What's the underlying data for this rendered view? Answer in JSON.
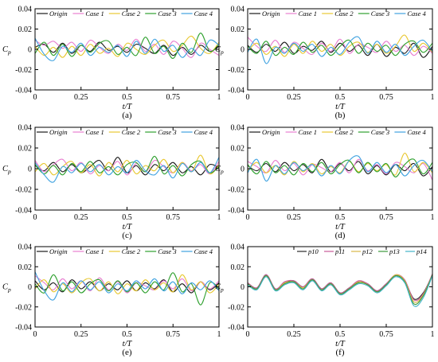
{
  "colors": {
    "Origin": "#1a1a1a",
    "Case 1": "#e87ed0",
    "Case 2": "#e8c832",
    "Case 3": "#2ea02e",
    "Case 4": "#3fa2e0",
    "p10": "#2a2a2a",
    "p11": "#c85a9a",
    "p12": "#d8b848",
    "p13": "#3c9a3c",
    "p14": "#44b4c8"
  },
  "chart_data": [
    {
      "type": "line",
      "panel_label": "(a)",
      "xlabel": "t/T",
      "ylabel": "C_p",
      "xlim": [
        0,
        1
      ],
      "ylim": [
        -0.04,
        0.04
      ],
      "x_ticks": [
        "0",
        "0.25",
        "0.5",
        "0.75",
        "1"
      ],
      "y_ticks": [
        "-0.04",
        "-0.02",
        "0",
        "0.02",
        "0.04"
      ],
      "legend_position": "top",
      "grid": false,
      "x": [
        0,
        0.05,
        0.1,
        0.15,
        0.2,
        0.25,
        0.3,
        0.35,
        0.4,
        0.45,
        0.5,
        0.55,
        0.6,
        0.65,
        0.7,
        0.75,
        0.8,
        0.85,
        0.9,
        0.95,
        1
      ],
      "series": [
        {
          "name": "Origin",
          "values": [
            0.002,
            0.005,
            -0.003,
            0.006,
            -0.004,
            0.004,
            -0.002,
            0.007,
            -0.001,
            0.003,
            -0.003,
            0.005,
            0.001,
            -0.004,
            0.004,
            -0.006,
            0.002,
            -0.005,
            0.004,
            -0.002,
            0.003
          ]
        },
        {
          "name": "Case 1",
          "values": [
            0.009,
            0.004,
            0.008,
            0.001,
            0.007,
            -0.002,
            0.009,
            0.002,
            -0.004,
            0.005,
            -0.001,
            0.01,
            -0.002,
            0.005,
            -0.005,
            0.008,
            0.001,
            -0.008,
            0.006,
            0.0,
            -0.006
          ]
        },
        {
          "name": "Case 2",
          "values": [
            0.003,
            -0.006,
            0.002,
            -0.008,
            0.003,
            -0.006,
            0.005,
            -0.004,
            0.001,
            -0.007,
            0.006,
            0.0,
            -0.005,
            0.004,
            0.009,
            -0.002,
            0.004,
            0.013,
            0.001,
            -0.004,
            0.007
          ]
        },
        {
          "name": "Case 3",
          "values": [
            -0.004,
            0.007,
            -0.006,
            0.005,
            -0.007,
            0.004,
            -0.003,
            0.006,
            0.008,
            -0.005,
            0.002,
            -0.006,
            0.012,
            -0.004,
            0.003,
            -0.009,
            0.006,
            -0.003,
            0.016,
            -0.002,
            0.005
          ]
        },
        {
          "name": "Case 4",
          "values": [
            0.011,
            -0.005,
            -0.011,
            0.003,
            -0.003,
            0.006,
            -0.006,
            0.002,
            -0.003,
            0.004,
            -0.007,
            0.008,
            -0.004,
            0.01,
            -0.002,
            0.004,
            -0.008,
            0.001,
            -0.006,
            0.009,
            0.004
          ]
        }
      ]
    },
    {
      "type": "line",
      "panel_label": "(b)",
      "xlabel": "t/T",
      "ylabel": "C_p",
      "xlim": [
        0,
        1
      ],
      "ylim": [
        -0.04,
        0.04
      ],
      "x_ticks": [
        "0",
        "0.25",
        "0.5",
        "0.75",
        "1"
      ],
      "y_ticks": [
        "-0.04",
        "-0.02",
        "0",
        "0.02",
        "0.04"
      ],
      "legend_position": "top",
      "grid": false,
      "x": [
        0,
        0.05,
        0.1,
        0.15,
        0.2,
        0.25,
        0.3,
        0.35,
        0.4,
        0.45,
        0.5,
        0.55,
        0.6,
        0.65,
        0.7,
        0.75,
        0.8,
        0.85,
        0.9,
        0.95,
        1
      ],
      "series": [
        {
          "name": "Origin",
          "values": [
            0.004,
            -0.003,
            0.005,
            -0.002,
            0.007,
            -0.004,
            0.003,
            -0.001,
            0.008,
            -0.003,
            0.006,
            -0.002,
            0.004,
            -0.006,
            0.005,
            -0.007,
            0.002,
            -0.004,
            0.006,
            -0.008,
            0.003
          ]
        },
        {
          "name": "Case 1",
          "values": [
            0.012,
            0.003,
            -0.002,
            0.009,
            -0.003,
            0.007,
            0.001,
            -0.005,
            0.006,
            -0.002,
            0.01,
            -0.004,
            0.005,
            0.002,
            -0.003,
            0.008,
            -0.002,
            0.004,
            -0.006,
            0.003,
            -0.004
          ]
        },
        {
          "name": "Case 2",
          "values": [
            -0.002,
            0.006,
            -0.005,
            0.003,
            -0.007,
            0.005,
            -0.004,
            0.008,
            -0.002,
            0.005,
            -0.006,
            0.003,
            0.007,
            -0.003,
            0.005,
            -0.004,
            0.003,
            0.014,
            -0.002,
            0.006,
            -0.003
          ]
        },
        {
          "name": "Case 3",
          "values": [
            0.003,
            -0.004,
            0.008,
            -0.006,
            0.002,
            -0.005,
            0.007,
            -0.003,
            0.004,
            -0.006,
            0.003,
            0.009,
            -0.004,
            0.006,
            -0.002,
            0.004,
            -0.006,
            0.005,
            0.008,
            -0.003,
            0.006
          ]
        },
        {
          "name": "Case 4",
          "values": [
            -0.003,
            0.01,
            -0.014,
            0.002,
            -0.004,
            0.006,
            -0.002,
            0.005,
            -0.007,
            0.002,
            -0.005,
            0.007,
            0.012,
            -0.004,
            0.008,
            -0.003,
            0.005,
            -0.006,
            0.003,
            0.009,
            -0.002
          ]
        }
      ]
    },
    {
      "type": "line",
      "panel_label": "(c)",
      "xlabel": "t/T",
      "ylabel": "C_p",
      "xlim": [
        0,
        1
      ],
      "ylim": [
        -0.04,
        0.04
      ],
      "x_ticks": [
        "0",
        "0.25",
        "0.5",
        "0.75",
        "1"
      ],
      "y_ticks": [
        "-0.04",
        "-0.02",
        "0",
        "0.02",
        "0.04"
      ],
      "legend_position": "top",
      "grid": false,
      "x": [
        0,
        0.05,
        0.1,
        0.15,
        0.2,
        0.25,
        0.3,
        0.35,
        0.4,
        0.45,
        0.5,
        0.55,
        0.6,
        0.65,
        0.7,
        0.75,
        0.8,
        0.85,
        0.9,
        0.95,
        1
      ],
      "series": [
        {
          "name": "Origin",
          "values": [
            0.003,
            -0.002,
            0.006,
            -0.003,
            0.004,
            -0.004,
            0.002,
            0.008,
            -0.002,
            0.011,
            -0.004,
            0.003,
            -0.006,
            0.004,
            -0.002,
            0.006,
            -0.004,
            0.002,
            -0.006,
            0.004,
            0.001
          ]
        },
        {
          "name": "Case 1",
          "values": [
            0.008,
            -0.003,
            0.004,
            0.009,
            -0.002,
            0.006,
            -0.005,
            0.003,
            -0.002,
            0.007,
            -0.006,
            0.005,
            -0.003,
            0.008,
            0.002,
            -0.004,
            0.006,
            -0.002,
            0.004,
            -0.005,
            0.007
          ]
        },
        {
          "name": "Case 2",
          "values": [
            -0.003,
            0.005,
            -0.006,
            0.002,
            0.007,
            -0.004,
            0.004,
            -0.007,
            0.006,
            -0.003,
            0.008,
            -0.005,
            0.003,
            -0.002,
            0.009,
            -0.004,
            0.006,
            -0.003,
            0.013,
            -0.005,
            0.004
          ]
        },
        {
          "name": "Case 3",
          "values": [
            0.004,
            -0.005,
            0.003,
            -0.006,
            0.005,
            -0.003,
            0.007,
            -0.004,
            0.002,
            -0.006,
            0.004,
            0.006,
            -0.003,
            0.012,
            -0.005,
            0.003,
            -0.007,
            0.004,
            0.007,
            -0.004,
            0.002
          ]
        },
        {
          "name": "Case 4",
          "values": [
            0.006,
            -0.006,
            -0.013,
            0.002,
            -0.004,
            0.005,
            -0.003,
            0.004,
            -0.006,
            0.002,
            -0.004,
            0.008,
            -0.002,
            -0.006,
            0.003,
            -0.009,
            0.005,
            -0.003,
            0.006,
            -0.004,
            0.011
          ]
        }
      ]
    },
    {
      "type": "line",
      "panel_label": "(d)",
      "xlabel": "t/T",
      "ylabel": "C_p",
      "xlim": [
        0,
        1
      ],
      "ylim": [
        -0.04,
        0.04
      ],
      "x_ticks": [
        "0",
        "0.25",
        "0.5",
        "0.75",
        "1"
      ],
      "y_ticks": [
        "-0.04",
        "-0.02",
        "0",
        "0.02",
        "0.04"
      ],
      "legend_position": "top",
      "grid": false,
      "x": [
        0,
        0.05,
        0.1,
        0.15,
        0.2,
        0.25,
        0.3,
        0.35,
        0.4,
        0.45,
        0.5,
        0.55,
        0.6,
        0.65,
        0.7,
        0.75,
        0.8,
        0.85,
        0.9,
        0.95,
        1
      ],
      "series": [
        {
          "name": "Origin",
          "values": [
            0.003,
            -0.002,
            0.005,
            -0.003,
            0.006,
            -0.002,
            0.004,
            -0.004,
            0.009,
            -0.003,
            0.005,
            -0.002,
            0.007,
            -0.005,
            0.003,
            -0.006,
            0.004,
            -0.002,
            0.005,
            -0.007,
            0.002
          ]
        },
        {
          "name": "Case 1",
          "values": [
            0.007,
            0.002,
            -0.004,
            0.008,
            -0.002,
            0.005,
            -0.006,
            0.004,
            0.001,
            -0.003,
            0.006,
            -0.004,
            0.009,
            -0.002,
            0.004,
            -0.005,
            0.006,
            0.002,
            -0.004,
            0.005,
            -0.011
          ]
        },
        {
          "name": "Case 2",
          "values": [
            -0.002,
            0.006,
            -0.004,
            0.003,
            -0.006,
            0.007,
            -0.003,
            0.005,
            -0.005,
            0.002,
            -0.004,
            0.007,
            -0.003,
            0.005,
            -0.002,
            0.004,
            -0.006,
            0.015,
            -0.003,
            0.006,
            -0.004
          ]
        },
        {
          "name": "Case 3",
          "values": [
            0.004,
            -0.005,
            0.007,
            -0.004,
            0.003,
            -0.006,
            0.005,
            -0.003,
            0.006,
            -0.005,
            0.004,
            0.008,
            -0.004,
            0.006,
            -0.003,
            0.005,
            -0.008,
            0.004,
            0.009,
            -0.005,
            0.006
          ]
        },
        {
          "name": "Case 4",
          "values": [
            -0.004,
            0.009,
            -0.012,
            0.003,
            -0.005,
            0.006,
            -0.002,
            0.004,
            -0.007,
            0.003,
            -0.005,
            0.008,
            0.012,
            -0.003,
            0.006,
            -0.004,
            0.004,
            -0.007,
            0.003,
            0.008,
            -0.003
          ]
        }
      ]
    },
    {
      "type": "line",
      "panel_label": "(e)",
      "xlabel": "t/T",
      "ylabel": "C_p",
      "xlim": [
        0,
        1
      ],
      "ylim": [
        -0.04,
        0.04
      ],
      "x_ticks": [
        "0",
        "0.25",
        "0.5",
        "0.75",
        "1"
      ],
      "y_ticks": [
        "-0.04",
        "-0.02",
        "0",
        "0.02",
        "0.04"
      ],
      "legend_position": "top",
      "grid": false,
      "x": [
        0,
        0.05,
        0.1,
        0.15,
        0.2,
        0.25,
        0.3,
        0.35,
        0.4,
        0.45,
        0.5,
        0.55,
        0.6,
        0.65,
        0.7,
        0.75,
        0.8,
        0.85,
        0.9,
        0.95,
        1
      ],
      "series": [
        {
          "name": "Origin",
          "values": [
            0.006,
            -0.003,
            0.004,
            -0.005,
            0.007,
            -0.002,
            0.005,
            -0.004,
            0.003,
            -0.003,
            0.006,
            -0.004,
            0.004,
            -0.002,
            0.007,
            -0.005,
            0.003,
            -0.006,
            0.005,
            -0.003,
            0.004
          ]
        },
        {
          "name": "Case 1",
          "values": [
            0.011,
            0.004,
            -0.003,
            0.008,
            -0.002,
            0.006,
            -0.004,
            0.009,
            -0.003,
            0.005,
            -0.006,
            0.004,
            0.001,
            -0.003,
            0.006,
            -0.002,
            0.008,
            -0.004,
            0.005,
            -0.002,
            0.006
          ]
        },
        {
          "name": "Case 2",
          "values": [
            -0.002,
            0.007,
            -0.005,
            0.003,
            -0.006,
            0.004,
            0.008,
            -0.004,
            0.005,
            -0.007,
            0.003,
            -0.004,
            0.007,
            -0.003,
            0.004,
            -0.005,
            0.012,
            -0.003,
            0.005,
            -0.006,
            0.003
          ]
        },
        {
          "name": "Case 3",
          "values": [
            0.003,
            -0.006,
            0.012,
            -0.004,
            0.005,
            -0.006,
            0.003,
            0.007,
            -0.004,
            0.006,
            -0.005,
            0.004,
            -0.006,
            0.005,
            -0.003,
            0.014,
            -0.005,
            0.003,
            -0.018,
            0.004,
            -0.002
          ]
        },
        {
          "name": "Case 4",
          "values": [
            0.015,
            -0.004,
            -0.013,
            0.004,
            -0.005,
            0.006,
            -0.003,
            0.005,
            -0.006,
            0.003,
            -0.004,
            0.006,
            -0.002,
            0.008,
            -0.004,
            0.005,
            -0.007,
            0.004,
            -0.003,
            0.006,
            -0.004
          ]
        }
      ]
    },
    {
      "type": "line",
      "panel_label": "(f)",
      "xlabel": "t/T",
      "ylabel": "C_p",
      "xlim": [
        0,
        1
      ],
      "ylim": [
        -0.04,
        0.04
      ],
      "x_ticks": [
        "0",
        "0.25",
        "0.5",
        "0.75",
        "1"
      ],
      "y_ticks": [
        "-0.04",
        "-0.02",
        "0",
        "0.02",
        "0.04"
      ],
      "legend_position": "top",
      "grid": false,
      "x": [
        0,
        0.05,
        0.1,
        0.15,
        0.2,
        0.25,
        0.3,
        0.35,
        0.4,
        0.45,
        0.5,
        0.55,
        0.6,
        0.65,
        0.7,
        0.75,
        0.8,
        0.85,
        0.9,
        0.95,
        1
      ],
      "series": [
        {
          "name": "p10",
          "values": [
            0.004,
            -0.001,
            0.012,
            -0.002,
            0.004,
            0.006,
            0.0,
            0.008,
            -0.002,
            0.004,
            -0.006,
            -0.001,
            0.005,
            0.003,
            -0.004,
            0.003,
            0.011,
            0.006,
            -0.012,
            -0.006,
            0.012
          ]
        },
        {
          "name": "p11",
          "values": [
            0.004,
            -0.001,
            0.012,
            -0.002,
            0.005,
            0.006,
            0.0,
            0.008,
            -0.002,
            0.004,
            -0.006,
            -0.001,
            0.006,
            0.003,
            -0.004,
            0.003,
            0.012,
            0.007,
            -0.013,
            -0.007,
            0.013
          ]
        },
        {
          "name": "p12",
          "values": [
            0.003,
            -0.002,
            0.011,
            -0.003,
            0.004,
            0.005,
            -0.001,
            0.007,
            -0.003,
            0.003,
            -0.007,
            -0.002,
            0.005,
            0.002,
            -0.005,
            0.002,
            0.012,
            0.006,
            -0.015,
            -0.008,
            0.012
          ]
        },
        {
          "name": "p13",
          "values": [
            0.003,
            -0.002,
            0.011,
            -0.003,
            0.003,
            0.005,
            -0.002,
            0.007,
            -0.003,
            0.003,
            -0.007,
            -0.002,
            0.004,
            0.002,
            -0.005,
            0.002,
            0.011,
            0.005,
            -0.017,
            -0.009,
            0.012
          ]
        },
        {
          "name": "p14",
          "values": [
            0.002,
            -0.003,
            0.01,
            -0.004,
            0.002,
            0.004,
            -0.003,
            0.006,
            -0.004,
            0.002,
            -0.008,
            -0.003,
            0.003,
            0.001,
            -0.006,
            0.001,
            0.01,
            0.004,
            -0.019,
            -0.011,
            0.011
          ]
        }
      ]
    }
  ]
}
